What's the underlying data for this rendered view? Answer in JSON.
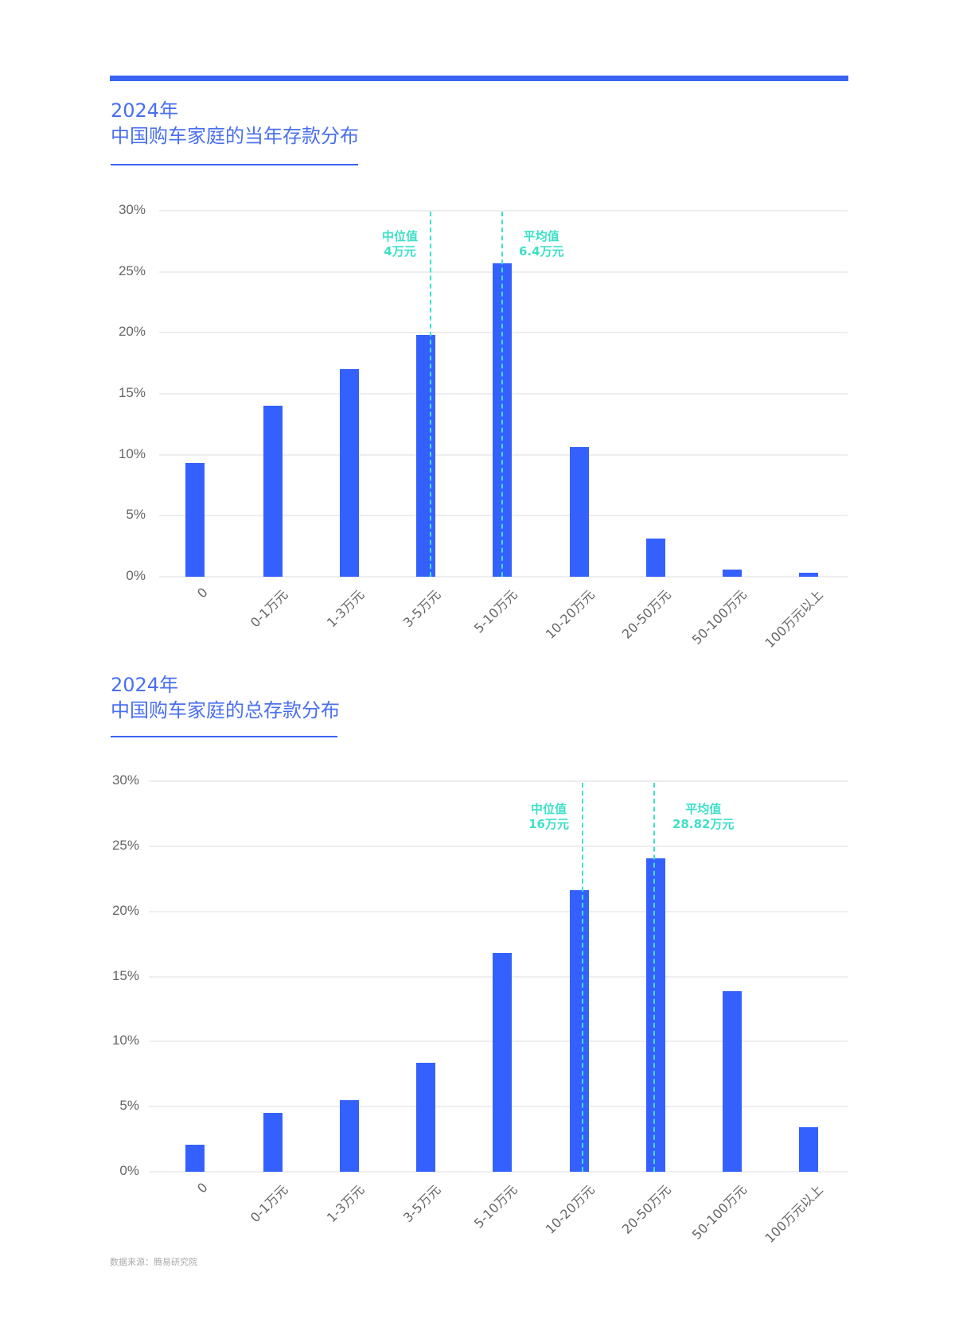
{
  "header": {
    "accent_color": "#3a63f4",
    "bar_color": "#3461fe",
    "annotation_color": "#3fe0c8"
  },
  "charts": [
    {
      "title_year": "2024年",
      "title": "中国购车家庭的当年存款分布",
      "annotations": {
        "median_label": "中位值",
        "median_value": "4万元",
        "mean_label": "平均值",
        "mean_value": "6.4万元"
      }
    },
    {
      "title_year": "2024年",
      "title": "中国购车家庭的总存款分布",
      "annotations": {
        "median_label": "中位值",
        "median_value": "16万元",
        "mean_label": "平均值",
        "mean_value": "28.82万元"
      }
    }
  ],
  "yticks": [
    "30%",
    "25%",
    "20%",
    "15%",
    "10%",
    "5%",
    "0%"
  ],
  "source": "数据来源：腾易研究院",
  "chart_data": [
    {
      "type": "bar",
      "title": "2024年 中国购车家庭的当年存款分布",
      "xlabel": "",
      "ylabel": "",
      "categories": [
        "0",
        "0-1万元",
        "1-3万元",
        "3-5万元",
        "5-10万元",
        "10-20万元",
        "20-50万元",
        "50-100万元",
        "100万元以上"
      ],
      "values": [
        9.3,
        14.0,
        17.0,
        19.8,
        25.7,
        10.6,
        3.1,
        0.6,
        0.3
      ],
      "unit": "%",
      "ylim": [
        0,
        30
      ],
      "yticks": [
        0,
        5,
        10,
        15,
        20,
        25,
        30
      ],
      "grid": true,
      "reference_lines": [
        {
          "label": "中位值",
          "value": "4万元",
          "position_category": "3-5万元"
        },
        {
          "label": "平均值",
          "value": "6.4万元",
          "position_category": "5-10万元"
        }
      ]
    },
    {
      "type": "bar",
      "title": "2024年 中国购车家庭的总存款分布",
      "xlabel": "",
      "ylabel": "",
      "categories": [
        "0",
        "0-1万元",
        "1-3万元",
        "3-5万元",
        "5-10万元",
        "10-20万元",
        "20-50万元",
        "50-100万元",
        "100万元以上"
      ],
      "values": [
        2.1,
        4.5,
        5.5,
        8.4,
        16.8,
        21.6,
        24.1,
        13.9,
        3.4
      ],
      "unit": "%",
      "ylim": [
        0,
        30
      ],
      "yticks": [
        0,
        5,
        10,
        15,
        20,
        25,
        30
      ],
      "grid": true,
      "reference_lines": [
        {
          "label": "中位值",
          "value": "16万元",
          "position_category": "10-20万元"
        },
        {
          "label": "平均值",
          "value": "28.82万元",
          "position_category": "20-50万元"
        }
      ]
    }
  ]
}
